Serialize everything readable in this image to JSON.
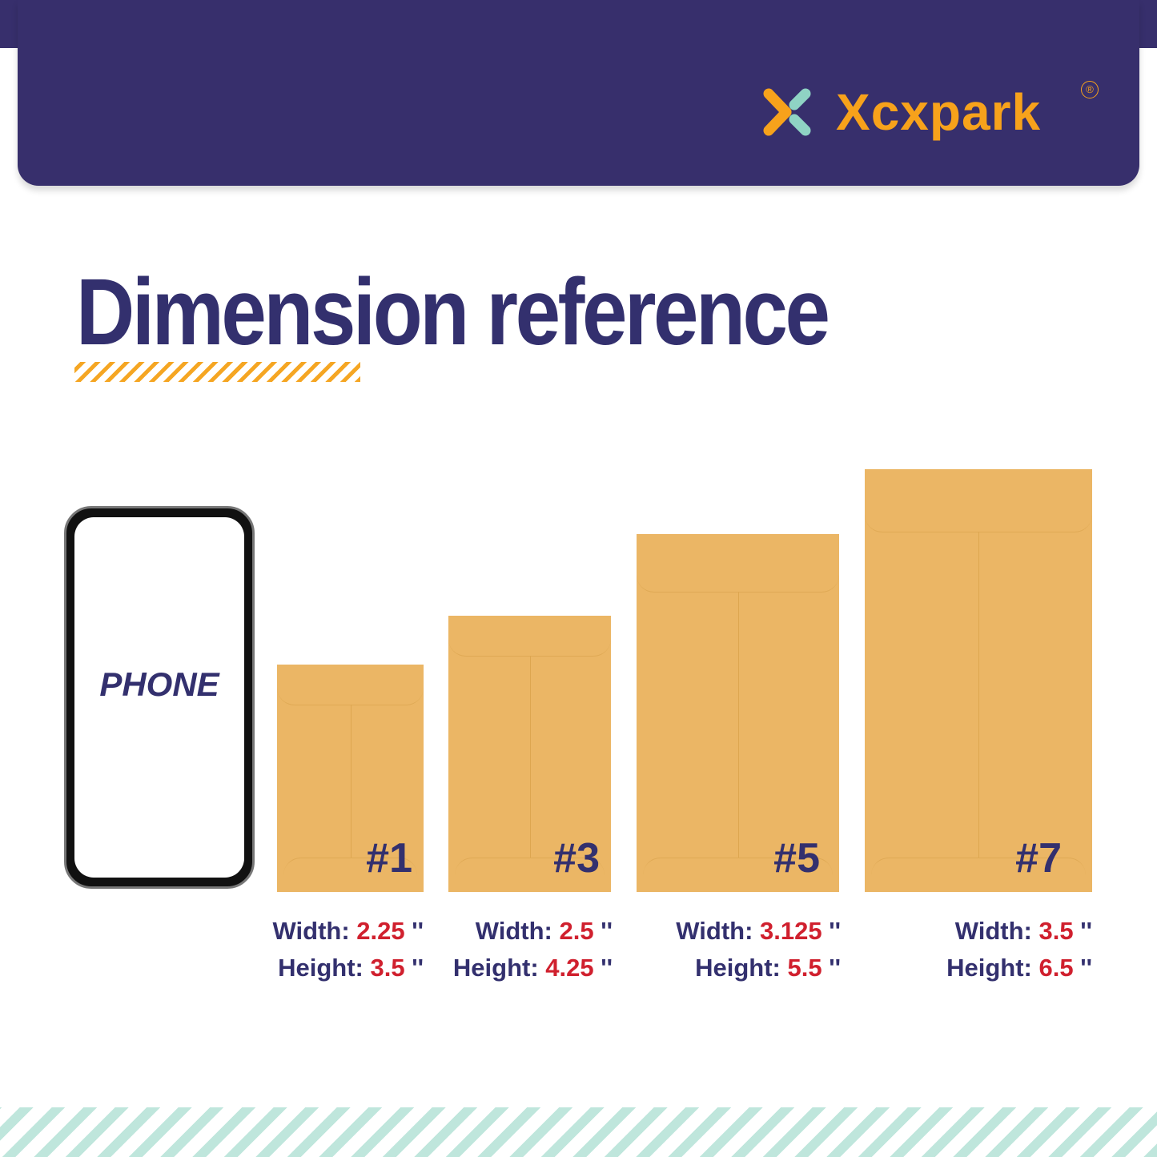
{
  "brand": {
    "name": "Xcxpark",
    "registered": "®",
    "logo_icon": "x-chevron-logo-icon"
  },
  "title": "Dimension reference",
  "phone": {
    "label": "PHONE"
  },
  "colors": {
    "navy": "#372f6c",
    "orange": "#f7a21b",
    "red": "#d0202e",
    "kraft": "#ebb665",
    "mint": "#bfe6dc"
  },
  "envelopes": [
    {
      "number": "#1",
      "width_label": "Width:",
      "width": "2.25",
      "height_label": "Height:",
      "height": "3.5",
      "unit": "''"
    },
    {
      "number": "#3",
      "width_label": "Width:",
      "width": "2.5",
      "height_label": "Height:",
      "height": "4.25",
      "unit": "''"
    },
    {
      "number": "#5",
      "width_label": "Width:",
      "width": "3.125",
      "height_label": "Height:",
      "height": "5.5",
      "unit": "''"
    },
    {
      "number": "#7",
      "width_label": "Width:",
      "width": "3.5",
      "height_label": "Height:",
      "height": "6.5",
      "unit": "''"
    }
  ]
}
